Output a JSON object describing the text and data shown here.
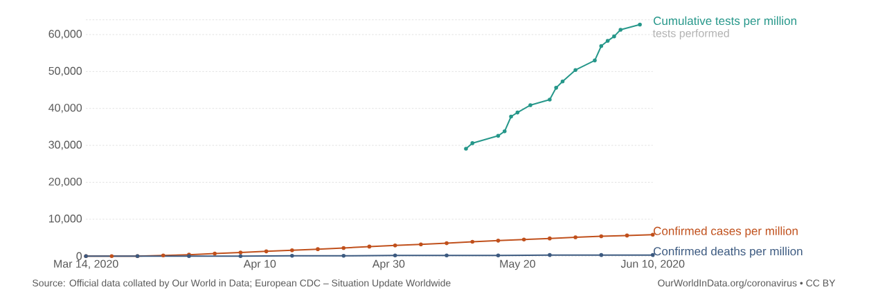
{
  "chart_data": {
    "type": "line",
    "xlim": [
      "2020-03-14",
      "2020-06-10"
    ],
    "xticks": [
      {
        "value": "2020-03-14",
        "label": "Mar 14, 2020"
      },
      {
        "value": "2020-04-10",
        "label": "Apr 10"
      },
      {
        "value": "2020-04-30",
        "label": "Apr 30"
      },
      {
        "value": "2020-05-20",
        "label": "May 20"
      },
      {
        "value": "2020-06-10",
        "label": "Jun 10, 2020"
      }
    ],
    "ylim": [
      0,
      64000
    ],
    "yticks": [
      0,
      {
        "value": 10000,
        "label": "10,000"
      },
      {
        "value": 20000,
        "label": "20,000"
      },
      {
        "value": 30000,
        "label": "30,000"
      },
      {
        "value": 40000,
        "label": "40,000"
      },
      {
        "value": 50000,
        "label": "50,000"
      },
      {
        "value": 60000,
        "label": "60,000"
      },
      {
        "value": 64000,
        "label": null
      }
    ],
    "grid": "y",
    "marker": "circle",
    "series": [
      {
        "name": "Cumulative tests per million",
        "color": "#26978a",
        "x": [
          "2020-05-12",
          "2020-05-13",
          "2020-05-17",
          "2020-05-18",
          "2020-05-19",
          "2020-05-20",
          "2020-05-22",
          "2020-05-25",
          "2020-05-26",
          "2020-05-27",
          "2020-05-29",
          "2020-06-01",
          "2020-06-02",
          "2020-06-03",
          "2020-06-04",
          "2020-06-05",
          "2020-06-08"
        ],
        "values": [
          29100,
          30600,
          32600,
          33800,
          37800,
          38900,
          40900,
          42400,
          45600,
          47300,
          50400,
          53000,
          56900,
          58300,
          59500,
          61300,
          62700
        ]
      },
      {
        "name": "Confirmed cases per million",
        "color": "#c0501c",
        "x": [
          "2020-03-14",
          "2020-03-18",
          "2020-03-22",
          "2020-03-26",
          "2020-03-30",
          "2020-04-03",
          "2020-04-07",
          "2020-04-11",
          "2020-04-15",
          "2020-04-19",
          "2020-04-23",
          "2020-04-27",
          "2020-05-01",
          "2020-05-05",
          "2020-05-09",
          "2020-05-13",
          "2020-05-17",
          "2020-05-21",
          "2020-05-25",
          "2020-05-29",
          "2020-06-02",
          "2020-06-06",
          "2020-06-10"
        ],
        "values": [
          0,
          0,
          0,
          200,
          400,
          700,
          1000,
          1300,
          1600,
          1900,
          2200,
          2600,
          2900,
          3200,
          3500,
          3900,
          4200,
          4500,
          4800,
          5100,
          5400,
          5600,
          5800
        ]
      },
      {
        "name": "Confirmed deaths per million",
        "color": "#3c5a80",
        "x": [
          "2020-03-14",
          "2020-03-22",
          "2020-03-30",
          "2020-04-07",
          "2020-04-15",
          "2020-04-23",
          "2020-05-01",
          "2020-05-09",
          "2020-05-17",
          "2020-05-25",
          "2020-06-02",
          "2020-06-10"
        ],
        "values": [
          0,
          0,
          0,
          0,
          100,
          100,
          200,
          200,
          200,
          300,
          300,
          300
        ]
      }
    ],
    "annotations": [
      {
        "text": "tests performed",
        "x": "2020-06-08",
        "y": 62700
      },
      "Source: Official data collated by Our World in Data; European CDC – Situation Update Worldwide",
      "OurWorldInData.org/coronavirus • CC BY"
    ]
  }
}
